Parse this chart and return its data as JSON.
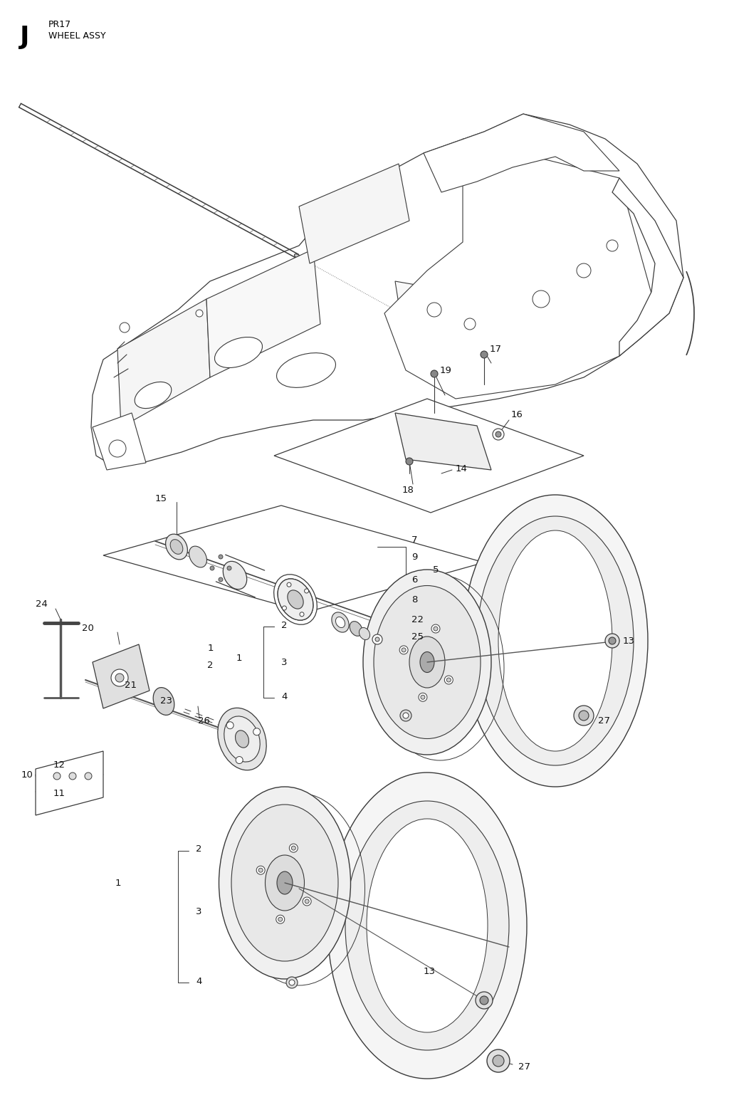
{
  "title_letter": "J",
  "title_line1": "PR17",
  "title_line2": "WHEEL ASSY",
  "bg_color": "#ffffff",
  "line_color": "#3a3a3a",
  "fig_width": 10.24,
  "fig_height": 15.52,
  "dpi": 100
}
